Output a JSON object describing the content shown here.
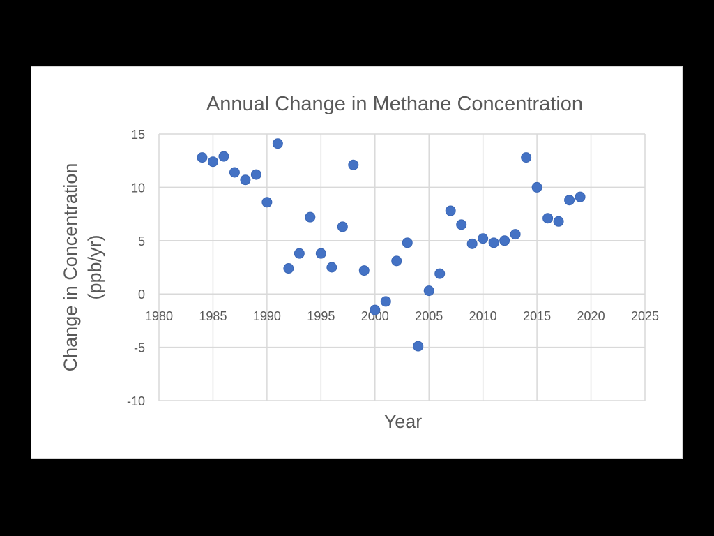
{
  "chart_data": {
    "type": "scatter",
    "title": "Annual Change in Methane Concentration",
    "xlabel": "Year",
    "ylabel_line1": "Change in Concentration",
    "ylabel_line2": "(ppb/yr)",
    "xlim": [
      1980,
      2025
    ],
    "ylim": [
      -10,
      15
    ],
    "xticks": [
      1980,
      1985,
      1990,
      1995,
      2000,
      2005,
      2010,
      2015,
      2020,
      2025
    ],
    "yticks": [
      -10,
      -5,
      0,
      5,
      10,
      15
    ],
    "grid": true,
    "marker_color": "#4472c4",
    "x": [
      1984,
      1985,
      1986,
      1987,
      1988,
      1989,
      1990,
      1991,
      1992,
      1993,
      1994,
      1995,
      1996,
      1997,
      1998,
      1999,
      2000,
      2001,
      2002,
      2003,
      2004,
      2005,
      2006,
      2007,
      2008,
      2009,
      2010,
      2011,
      2012,
      2013,
      2014,
      2015,
      2016,
      2017,
      2018,
      2019
    ],
    "y": [
      12.8,
      12.4,
      12.9,
      11.4,
      10.7,
      11.2,
      8.6,
      14.1,
      2.4,
      3.8,
      7.2,
      3.8,
      2.5,
      6.3,
      12.1,
      2.2,
      -1.5,
      -0.7,
      3.1,
      4.8,
      -4.9,
      0.3,
      1.9,
      7.8,
      6.5,
      4.7,
      5.2,
      4.8,
      5.0,
      5.6,
      12.8,
      10.0,
      7.1,
      6.8,
      8.8,
      9.1
    ]
  }
}
